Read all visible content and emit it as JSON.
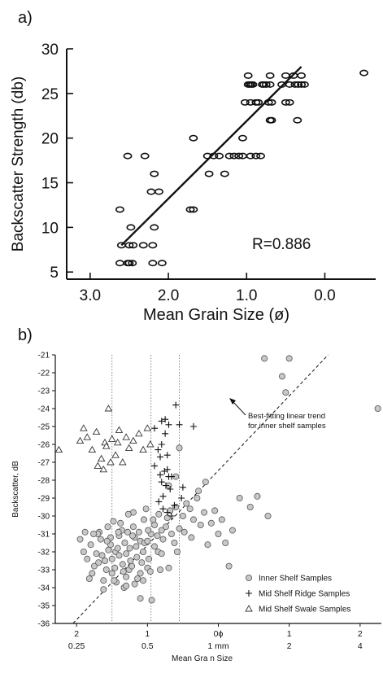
{
  "chart_data": [
    {
      "panel": "a)",
      "type": "scatter",
      "xlabel": "Mean Grain Size (ø)",
      "ylabel": "Backscatter Strength (db)",
      "xlim": [
        3.3,
        -0.65
      ],
      "ylim": [
        4.2,
        30
      ],
      "x_reversed": true,
      "xticks": [
        3.0,
        2.0,
        1.0,
        0.0
      ],
      "xtick_labels": [
        "3.0",
        "2.0",
        "1.0",
        "0.0"
      ],
      "yticks": [
        5,
        10,
        15,
        20,
        25,
        30
      ],
      "ytick_labels": [
        "5",
        "10",
        "15",
        "20",
        "25",
        "30"
      ],
      "annotation": "R=0.886",
      "marker": "open-circle",
      "series": [
        {
          "points": [
            [
              2.62,
              6
            ],
            [
              2.52,
              6
            ],
            [
              2.5,
              6
            ],
            [
              2.46,
              6
            ],
            [
              2.2,
              6
            ],
            [
              2.08,
              6
            ],
            [
              2.6,
              8
            ],
            [
              2.5,
              8
            ],
            [
              2.45,
              8
            ],
            [
              2.32,
              8
            ],
            [
              2.2,
              8
            ],
            [
              2.48,
              10
            ],
            [
              2.18,
              10
            ],
            [
              2.62,
              12
            ],
            [
              1.72,
              12
            ],
            [
              1.68,
              12
            ],
            [
              2.22,
              14
            ],
            [
              2.12,
              14
            ],
            [
              2.52,
              18
            ],
            [
              2.3,
              18
            ],
            [
              2.18,
              16
            ],
            [
              1.48,
              16
            ],
            [
              1.28,
              16
            ],
            [
              1.5,
              18
            ],
            [
              1.42,
              18
            ],
            [
              1.35,
              18
            ],
            [
              1.22,
              18
            ],
            [
              1.16,
              18
            ],
            [
              1.1,
              18
            ],
            [
              1.05,
              18
            ],
            [
              0.95,
              18
            ],
            [
              0.88,
              18
            ],
            [
              0.82,
              18
            ],
            [
              1.68,
              20
            ],
            [
              1.05,
              20
            ],
            [
              0.7,
              22
            ],
            [
              0.68,
              22
            ],
            [
              0.35,
              22
            ],
            [
              1.02,
              24
            ],
            [
              0.95,
              24
            ],
            [
              0.88,
              24
            ],
            [
              0.85,
              24
            ],
            [
              0.72,
              24
            ],
            [
              0.68,
              24
            ],
            [
              0.5,
              24
            ],
            [
              0.45,
              24
            ],
            [
              0.98,
              26
            ],
            [
              0.96,
              26
            ],
            [
              0.94,
              26
            ],
            [
              0.92,
              26
            ],
            [
              0.8,
              26
            ],
            [
              0.78,
              26
            ],
            [
              0.75,
              26
            ],
            [
              0.7,
              26
            ],
            [
              0.55,
              26
            ],
            [
              0.45,
              26
            ],
            [
              0.38,
              26
            ],
            [
              0.34,
              26
            ],
            [
              0.3,
              26
            ],
            [
              0.26,
              26
            ],
            [
              0.98,
              27
            ],
            [
              0.7,
              27
            ],
            [
              0.5,
              27
            ],
            [
              0.4,
              27
            ],
            [
              0.3,
              27
            ],
            [
              -0.5,
              27.3
            ]
          ]
        }
      ],
      "fit_line": [
        [
          2.6,
          8.0
        ],
        [
          0.3,
          28.0
        ]
      ]
    },
    {
      "panel": "b)",
      "type": "scatter",
      "xlabel": "Mean Gra n Size",
      "ylabel": "Backscatter, dB",
      "xlim": [
        2.3,
        -2.3
      ],
      "ylim": [
        -36,
        -21
      ],
      "x_reversed": true,
      "yticks": [
        -21,
        -22,
        -23,
        -24,
        -25,
        -26,
        -27,
        -28,
        -29,
        -30,
        -31,
        -32,
        -33,
        -34,
        -35,
        -36
      ],
      "ytick_labels": [
        "-21",
        "-22",
        "-23",
        "-24",
        "-25",
        "-26",
        "-27",
        "-28",
        "-29",
        "-30",
        "-31",
        "-32",
        "-33",
        "-34",
        "-35",
        "-36"
      ],
      "x_top_ticks": [
        2,
        1,
        0,
        -1,
        -2
      ],
      "x_top_labels": [
        "2",
        "1",
        "0ϕ",
        "1",
        "2"
      ],
      "x_bottom_ticks": [
        2,
        1,
        0,
        -1,
        -2
      ],
      "x_bottom_labels": [
        "0.25",
        "0.5",
        "1 mm",
        "2",
        "4"
      ],
      "reference_lines_x": [
        1.5,
        0.95,
        0.55
      ],
      "fit_line": [
        [
          2.05,
          -36.0
        ],
        [
          -1.55,
          -21.0
        ]
      ],
      "annotation": "Best-fitting linear trend\nfor inner shelf samples",
      "series": [
        {
          "name": "Inner Shelf Samples",
          "marker": "filled-circle",
          "color": "#c8c8c8",
          "points": [
            [
              1.8,
              -31.6
            ],
            [
              1.72,
              -32.1
            ],
            [
              1.66,
              -31.3
            ],
            [
              1.6,
              -32.5
            ],
            [
              1.55,
              -31.9
            ],
            [
              1.5,
              -33.2
            ],
            [
              1.45,
              -32.0
            ],
            [
              1.4,
              -31.1
            ],
            [
              1.35,
              -32.7
            ],
            [
              1.3,
              -33.4
            ],
            [
              1.25,
              -31.8
            ],
            [
              1.2,
              -30.6
            ],
            [
              1.15,
              -32.3
            ],
            [
              1.1,
              -31.4
            ],
            [
              1.05,
              -30.2
            ],
            [
              1.0,
              -32.9
            ],
            [
              0.95,
              -31.0
            ],
            [
              0.9,
              -30.5
            ],
            [
              0.85,
              -32.0
            ],
            [
              0.8,
              -30.8
            ],
            [
              1.75,
              -32.8
            ],
            [
              1.68,
              -30.9
            ],
            [
              1.62,
              -33.6
            ],
            [
              1.56,
              -30.6
            ],
            [
              1.5,
              -32.4
            ],
            [
              1.44,
              -33.7
            ],
            [
              1.38,
              -30.4
            ],
            [
              1.32,
              -31.5
            ],
            [
              1.26,
              -33.0
            ],
            [
              1.2,
              -29.8
            ],
            [
              1.14,
              -33.5
            ],
            [
              1.08,
              -32.6
            ],
            [
              1.02,
              -29.6
            ],
            [
              0.96,
              -33.1
            ],
            [
              0.9,
              -31.7
            ],
            [
              0.84,
              -29.9
            ],
            [
              0.78,
              -31.3
            ],
            [
              0.72,
              -30.1
            ],
            [
              0.66,
              -31.0
            ],
            [
              0.6,
              -29.5
            ],
            [
              1.85,
              -32.4
            ],
            [
              1.78,
              -33.2
            ],
            [
              1.7,
              -31.0
            ],
            [
              1.64,
              -32.2
            ],
            [
              1.58,
              -33.0
            ],
            [
              1.52,
              -31.2
            ],
            [
              1.46,
              -32.9
            ],
            [
              1.4,
              -32.2
            ],
            [
              1.34,
              -33.1
            ],
            [
              1.28,
              -30.9
            ],
            [
              1.22,
              -32.8
            ],
            [
              1.16,
              -31.7
            ],
            [
              1.1,
              -33.2
            ],
            [
              1.04,
              -31.5
            ],
            [
              0.98,
              -32.4
            ],
            [
              0.92,
              -30.2
            ],
            [
              0.86,
              -31.1
            ],
            [
              0.8,
              -32.1
            ],
            [
              0.74,
              -30.6
            ],
            [
              0.68,
              -29.7
            ],
            [
              1.9,
              -32.0
            ],
            [
              1.62,
              -34.1
            ],
            [
              1.47,
              -33.6
            ],
            [
              1.33,
              -34.0
            ],
            [
              1.18,
              -33.8
            ],
            [
              1.06,
              -33.6
            ],
            [
              0.94,
              -34.7
            ],
            [
              0.82,
              -33.0
            ],
            [
              0.7,
              -32.9
            ],
            [
              0.62,
              -31.5
            ],
            [
              0.55,
              -30.7
            ],
            [
              0.5,
              -30.0
            ],
            [
              0.45,
              -29.3
            ],
            [
              0.4,
              -29.6
            ],
            [
              0.35,
              -30.2
            ],
            [
              0.3,
              -29.0
            ],
            [
              0.25,
              -30.5
            ],
            [
              0.2,
              -29.8
            ],
            [
              0.15,
              -31.6
            ],
            [
              0.1,
              -30.4
            ],
            [
              0.05,
              -29.7
            ],
            [
              0.0,
              -31.0
            ],
            [
              -0.05,
              -30.2
            ],
            [
              -0.1,
              -31.5
            ],
            [
              -0.15,
              -32.8
            ],
            [
              -0.2,
              -30.8
            ],
            [
              -0.3,
              -29.0
            ],
            [
              -0.45,
              -29.5
            ],
            [
              -0.55,
              -28.9
            ],
            [
              -0.7,
              -30.0
            ],
            [
              1.1,
              -34.6
            ],
            [
              1.3,
              -33.9
            ],
            [
              0.58,
              -32.0
            ],
            [
              0.48,
              -30.9
            ],
            [
              0.38,
              -31.2
            ],
            [
              0.28,
              -28.6
            ],
            [
              0.18,
              -28.1
            ],
            [
              0.55,
              -26.2
            ],
            [
              0.6,
              -27.8
            ],
            [
              0.7,
              -28.3
            ],
            [
              1.52,
              -31.6
            ],
            [
              1.48,
              -30.3
            ],
            [
              1.42,
              -31.8
            ],
            [
              1.36,
              -30.8
            ],
            [
              1.3,
              -32.1
            ],
            [
              1.24,
              -32.5
            ],
            [
              1.18,
              -31.2
            ],
            [
              1.12,
              -30.9
            ],
            [
              1.06,
              -32.0
            ],
            [
              1.0,
              -31.4
            ],
            [
              1.95,
              -31.3
            ],
            [
              1.88,
              -30.9
            ],
            [
              1.82,
              -33.5
            ],
            [
              1.76,
              -31.0
            ],
            [
              1.69,
              -32.6
            ],
            [
              1.57,
              -31.4
            ],
            [
              1.41,
              -30.9
            ],
            [
              1.27,
              -29.9
            ],
            [
              1.21,
              -31.1
            ],
            [
              0.99,
              -30.8
            ],
            [
              -0.65,
              -21.2
            ],
            [
              -1.0,
              -21.2
            ],
            [
              -0.9,
              -22.2
            ],
            [
              -0.95,
              -23.1
            ],
            [
              -2.25,
              -24.0
            ]
          ]
        },
        {
          "name": "Mid Shelf Ridge Samples",
          "marker": "plus",
          "points": [
            [
              0.6,
              -23.8
            ],
            [
              0.75,
              -24.6
            ],
            [
              0.8,
              -24.7
            ],
            [
              0.7,
              -24.9
            ],
            [
              0.9,
              -25.1
            ],
            [
              0.55,
              -24.9
            ],
            [
              0.35,
              -25.0
            ],
            [
              0.8,
              -26.0
            ],
            [
              0.75,
              -25.4
            ],
            [
              0.85,
              -26.3
            ],
            [
              0.82,
              -26.7
            ],
            [
              0.72,
              -26.6
            ],
            [
              0.9,
              -27.2
            ],
            [
              0.82,
              -27.7
            ],
            [
              0.76,
              -27.5
            ],
            [
              0.7,
              -27.8
            ],
            [
              0.66,
              -27.8
            ],
            [
              0.72,
              -27.4
            ],
            [
              0.8,
              -28.1
            ],
            [
              0.74,
              -28.3
            ],
            [
              0.68,
              -28.5
            ],
            [
              0.78,
              -28.9
            ],
            [
              0.5,
              -28.4
            ],
            [
              0.52,
              -29.0
            ],
            [
              0.84,
              -29.2
            ],
            [
              0.72,
              -29.8
            ],
            [
              0.78,
              -29.6
            ],
            [
              0.62,
              -29.4
            ],
            [
              0.66,
              -30.0
            ]
          ]
        },
        {
          "name": "Mid Shelf Swale Samples",
          "marker": "open-triangle",
          "points": [
            [
              1.9,
              -25.1
            ],
            [
              1.85,
              -25.6
            ],
            [
              1.78,
              -26.3
            ],
            [
              1.72,
              -25.3
            ],
            [
              1.65,
              -26.8
            ],
            [
              1.6,
              -25.9
            ],
            [
              1.55,
              -24.0
            ],
            [
              1.5,
              -25.7
            ],
            [
              1.45,
              -26.6
            ],
            [
              1.4,
              -25.2
            ],
            [
              1.35,
              -27.0
            ],
            [
              1.3,
              -25.6
            ],
            [
              1.26,
              -26.2
            ],
            [
              1.2,
              -25.8
            ],
            [
              1.12,
              -25.4
            ],
            [
              1.06,
              -26.3
            ],
            [
              1.0,
              -25.1
            ],
            [
              0.96,
              -26.0
            ],
            [
              1.7,
              -27.2
            ],
            [
              1.62,
              -27.4
            ],
            [
              1.52,
              -27.0
            ],
            [
              1.95,
              -25.8
            ],
            [
              1.58,
              -26.1
            ],
            [
              1.42,
              -25.9
            ],
            [
              2.25,
              -26.3
            ]
          ]
        }
      ]
    }
  ]
}
